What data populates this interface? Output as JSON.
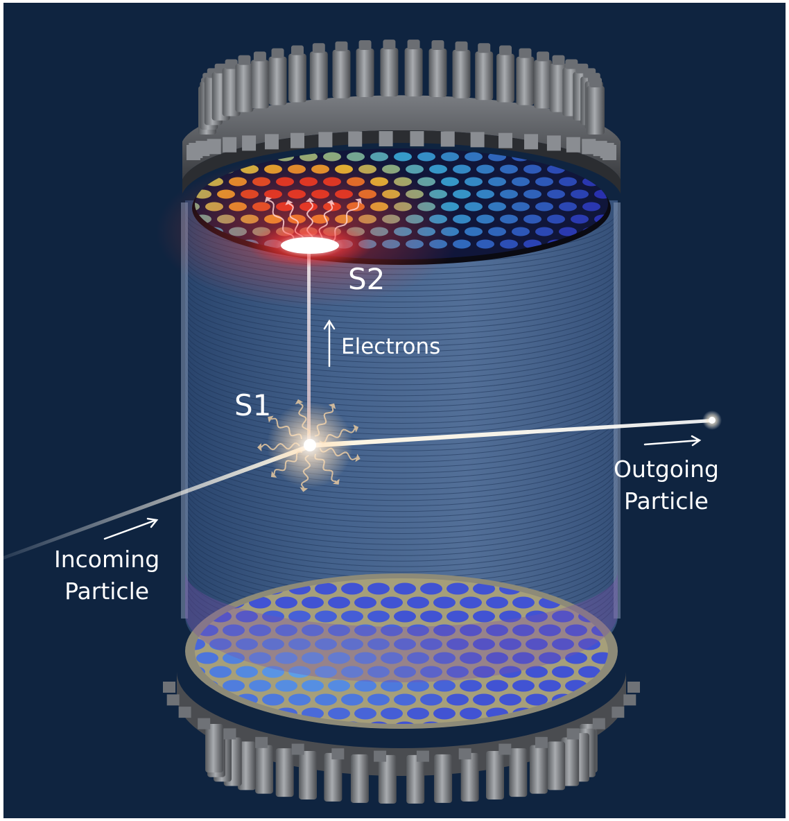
{
  "labels": {
    "s2": "S2",
    "s1": "S1",
    "electrons": "Electrons",
    "outgoing": "Outgoing\nParticle",
    "incoming": "Incoming\nParticle"
  },
  "colors": {
    "background": "#0f2440",
    "pmt_hot": "#e63a1f",
    "pmt_warm": "#f2c230",
    "pmt_cool": "#3aa9d6",
    "pmt_cold": "#2b34b8",
    "glow": "#ffffff"
  },
  "icons": {
    "electron_arrow": "arrow-up-icon",
    "outgoing_arrow": "arrow-right-icon",
    "incoming_arrow": "arrow-up-right-icon"
  }
}
